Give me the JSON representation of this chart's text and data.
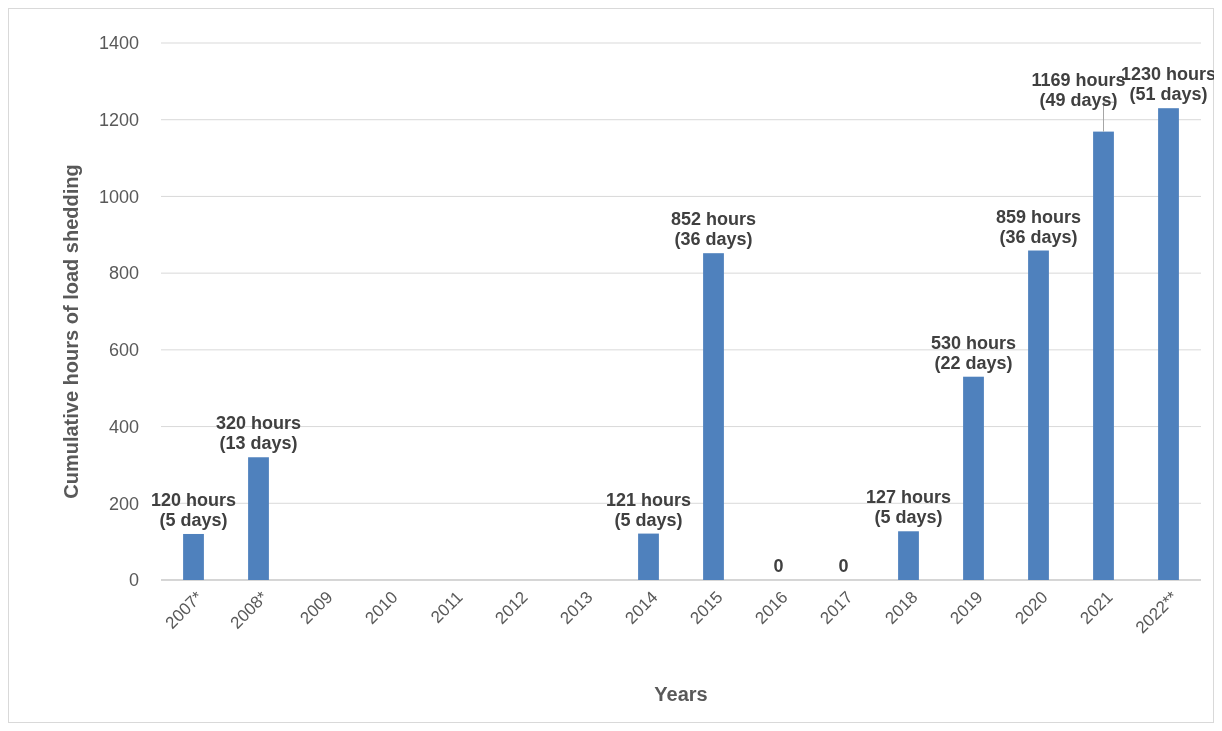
{
  "chart_data": {
    "type": "bar",
    "xlabel": "Years",
    "ylabel": "Cumulative hours of load shedding",
    "categories": [
      "2007*",
      "2008*",
      "2009",
      "2010",
      "2011",
      "2012",
      "2013",
      "2014",
      "2015",
      "2016",
      "2017",
      "2018",
      "2019",
      "2020",
      "2021",
      "2022**"
    ],
    "values": [
      120,
      320,
      null,
      null,
      null,
      null,
      null,
      121,
      852,
      0,
      0,
      127,
      530,
      859,
      1169,
      1230
    ],
    "value_labels": [
      "120 hours\n(5 days)",
      "320 hours\n(13 days)",
      null,
      null,
      null,
      null,
      null,
      "121 hours\n(5 days)",
      "852 hours\n(36 days)",
      "0",
      "0",
      "127 hours\n(5 days)",
      "530 hours\n(22 days)",
      "859 hours\n(36 days)",
      "1169 hours\n(49 days)",
      "1230 hours\n(51 days)"
    ],
    "color": "#4f81bd",
    "ylim": [
      0,
      1400
    ],
    "yticks": [
      0,
      200,
      400,
      600,
      800,
      1000,
      1200,
      1400
    ],
    "grid": "y"
  }
}
